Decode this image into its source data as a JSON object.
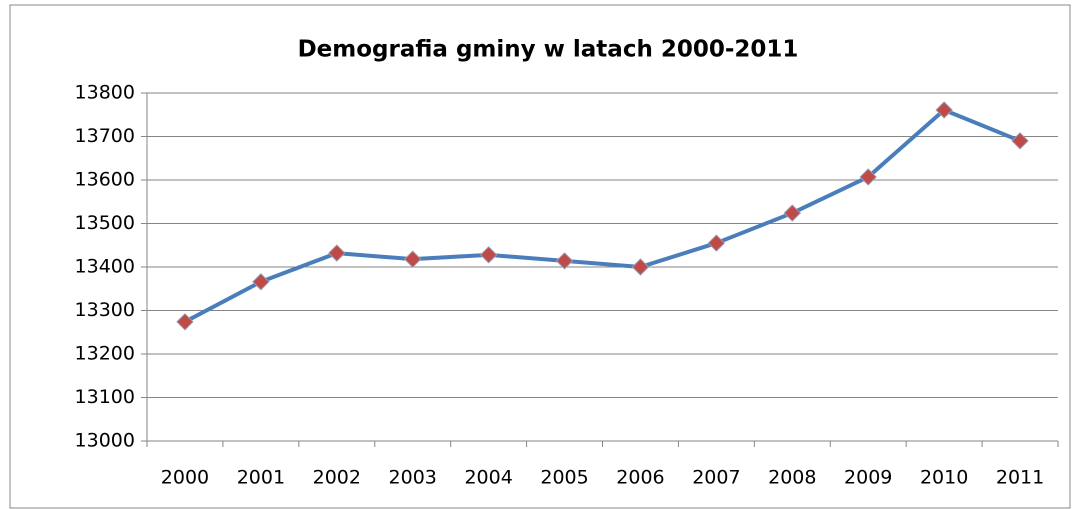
{
  "chart_data": {
    "type": "line",
    "title": "Demografia gminy w latach 2000-2011",
    "categories": [
      "2000",
      "2001",
      "2002",
      "2003",
      "2004",
      "2005",
      "2006",
      "2007",
      "2008",
      "2009",
      "2010",
      "2011"
    ],
    "series": [
      {
        "name": "Demografia",
        "color": "#4a7ebb",
        "marker_color": "#be4b48",
        "values": [
          13274,
          13366,
          13432,
          13418,
          13428,
          13414,
          13400,
          13455,
          13524,
          13607,
          13761,
          13690
        ]
      }
    ],
    "ylim": [
      13000,
      13800
    ],
    "yticks": [
      13000,
      13100,
      13200,
      13300,
      13400,
      13500,
      13600,
      13700,
      13800
    ],
    "grid": true
  }
}
